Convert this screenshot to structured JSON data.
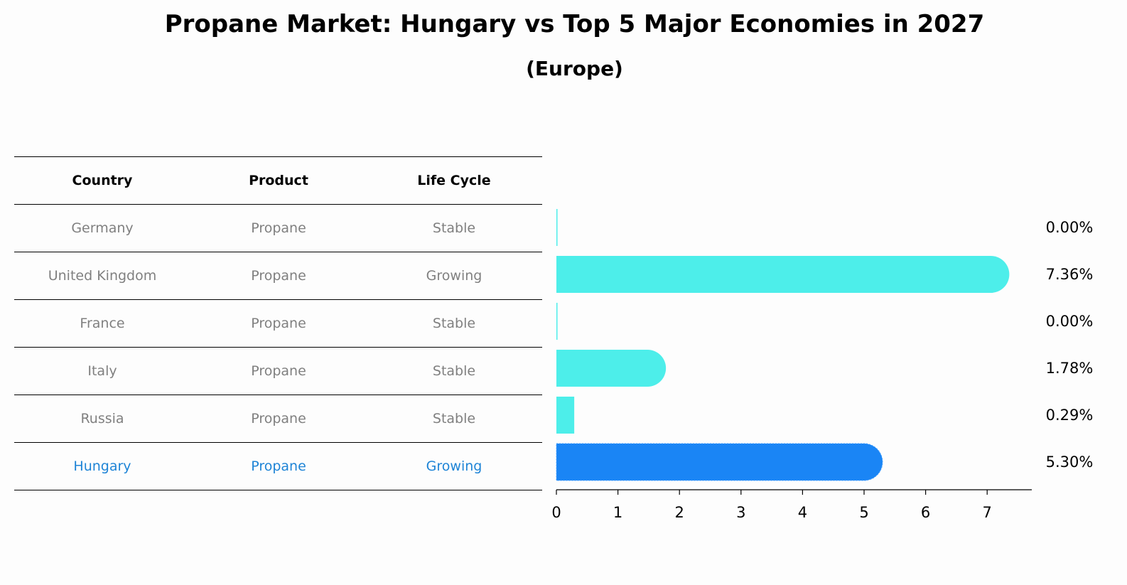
{
  "title": "Propane Market: Hungary vs Top 5 Major Economies in 2027",
  "subtitle": "(Europe)",
  "table": {
    "headers": [
      "Country",
      "Product",
      "Life Cycle"
    ],
    "rows": [
      {
        "country": "Germany",
        "product": "Propane",
        "life_cycle": "Stable"
      },
      {
        "country": "United Kingdom",
        "product": "Propane",
        "life_cycle": "Growing"
      },
      {
        "country": "France",
        "product": "Propane",
        "life_cycle": "Stable"
      },
      {
        "country": "Italy",
        "product": "Propane",
        "life_cycle": "Stable"
      },
      {
        "country": "Russia",
        "product": "Propane",
        "life_cycle": "Stable"
      },
      {
        "country": "Hungary",
        "product": "Propane",
        "life_cycle": "Growing",
        "highlight": true
      }
    ]
  },
  "colors": {
    "bar": "#4deeea",
    "highlight_bar": "#1a85f5",
    "muted_text": "#808080",
    "highlight_text": "#1e84d6"
  },
  "chart_data": {
    "type": "bar",
    "orientation": "horizontal",
    "categories": [
      "Germany",
      "United Kingdom",
      "France",
      "Italy",
      "Russia",
      "Hungary"
    ],
    "values": [
      0.0,
      7.36,
      0.0,
      1.78,
      0.29,
      5.3
    ],
    "value_labels": [
      "0.00%",
      "7.36%",
      "0.00%",
      "1.78%",
      "0.29%",
      "5.30%"
    ],
    "highlight": "Hungary",
    "xticks": [
      "0",
      "1",
      "2",
      "3",
      "4",
      "5",
      "6",
      "7"
    ],
    "xlim": [
      0,
      7.7
    ],
    "grid": false
  }
}
